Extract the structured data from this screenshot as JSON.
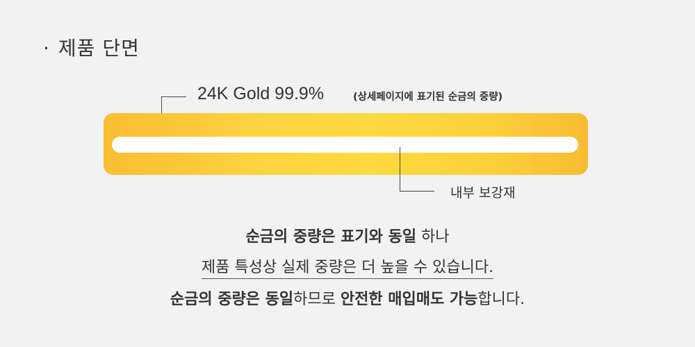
{
  "section_title": {
    "bullet": "·",
    "text": "제품 단면"
  },
  "gold_layer": {
    "label": "24K Gold 99.9%",
    "note": "(상세페이지에 표기된 순금의 중량)"
  },
  "inner_layer": {
    "label": "내부 보강재"
  },
  "description": {
    "line1": {
      "bold": "순금의 중량은 표기와 동일",
      "normal": " 하나"
    },
    "line2": "제품 특성상 실제 중량은 더 높을 수 있습니다.",
    "line3": {
      "bold1": "순금의 중량은 동일",
      "normal1": "하므로 ",
      "bold2": "안전한 매입매도 가능",
      "normal2": "합니다."
    }
  },
  "colors": {
    "background": "#f2f2f2",
    "gold_light": "#fed940",
    "gold_dark": "#f7bb33",
    "inner_core": "#ffffff",
    "text": "#333333"
  }
}
